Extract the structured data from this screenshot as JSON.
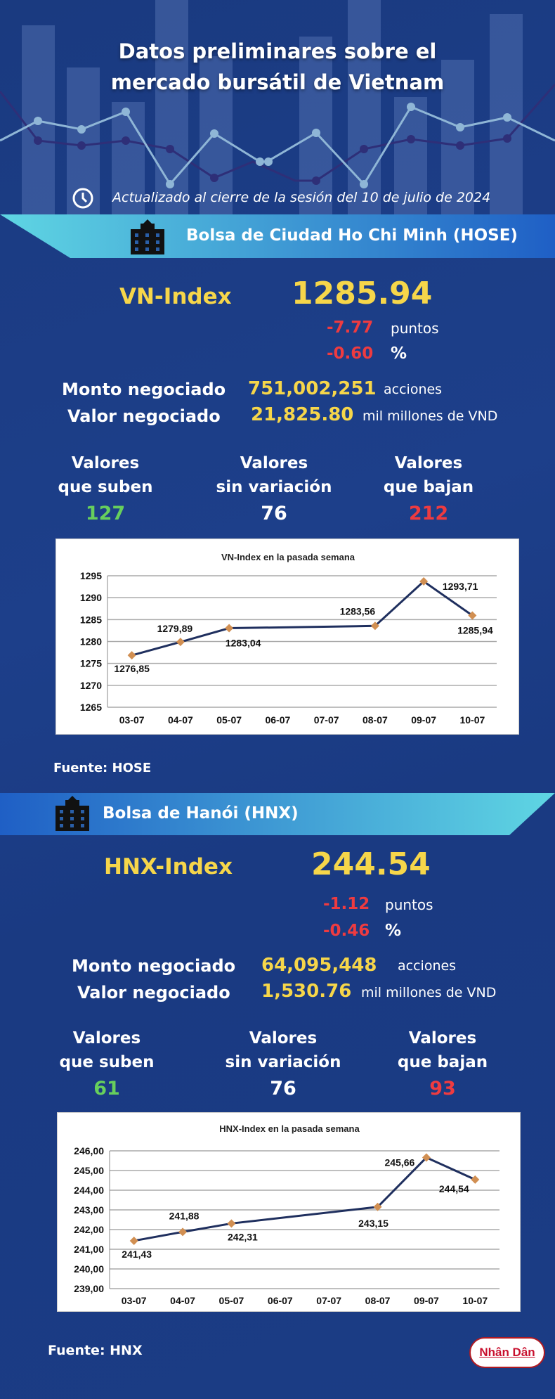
{
  "header": {
    "title_line1": "Datos preliminares sobre el",
    "title_line2": "mercado bursátil de Vietnam",
    "updated": "Actualizado al cierre de la sesión del 10 de julio de 2024",
    "icon": "clock-icon"
  },
  "colors": {
    "positive": "#67cf5c",
    "negative": "#ee3b40",
    "highlight": "#f6d64a",
    "background": "#1b3c85",
    "line": "#1f2f5e",
    "marker": "#d18f52"
  },
  "hose": {
    "banner": "Bolsa de Ciudad Ho Chi Minh (HOSE)",
    "index_label": "VN-Index",
    "index_value": "1285.94",
    "change_points": "-7.77",
    "points_unit": "puntos",
    "change_pct": "-0.60",
    "pct_unit": "%",
    "volume_label": "Monto negociado",
    "volume_value": "751,002,251",
    "volume_unit": "acciones",
    "value_label": "Valor negociado",
    "value_value": "21,825.80",
    "value_unit": "mil millones de VND",
    "up_label1": "Valores",
    "up_label2": "que suben",
    "up_count": "127",
    "flat_label1": "Valores",
    "flat_label2": "sin variación",
    "flat_count": "76",
    "down_label1": "Valores",
    "down_label2": "que bajan",
    "down_count": "212",
    "source": "Fuente: HOSE"
  },
  "hnx": {
    "banner": "Bolsa de Hanói (HNX)",
    "index_label": "HNX-Index",
    "index_value": "244.54",
    "change_points": "-1.12",
    "points_unit": "puntos",
    "change_pct": "-0.46",
    "pct_unit": "%",
    "volume_label": "Monto negociado",
    "volume_value": "64,095,448",
    "volume_unit": "acciones",
    "value_label": "Valor negociado",
    "value_value": "1,530.76",
    "value_unit": "mil millones de VND",
    "up_label1": "Valores",
    "up_label2": "que suben",
    "up_count": "61",
    "flat_label1": "Valores",
    "flat_label2": "sin variación",
    "flat_count": "76",
    "down_label1": "Valores",
    "down_label2": "que bajan",
    "down_count": "93",
    "source": "Fuente:  HNX"
  },
  "logo": "Nhân Dân",
  "chart_data": [
    {
      "type": "line",
      "title": "VN-Index en la pasada semana",
      "categories": [
        "03-07",
        "04-07",
        "05-07",
        "06-07",
        "07-07",
        "08-07",
        "09-07",
        "10-07"
      ],
      "x": [
        "03-07",
        "04-07",
        "05-07",
        "08-07",
        "09-07",
        "10-07"
      ],
      "values": [
        1276.85,
        1279.89,
        1283.04,
        1283.56,
        1293.71,
        1285.94
      ],
      "data_labels": [
        "1276,85",
        "1279,89",
        "1283,04",
        "1283,56",
        "1293,71",
        "1285,94"
      ],
      "yticks": [
        "1265",
        "1270",
        "1275",
        "1280",
        "1285",
        "1290",
        "1295"
      ],
      "ylim": [
        1265,
        1295
      ],
      "grid": true
    },
    {
      "type": "line",
      "title": "HNX-Index en la pasada semana",
      "categories": [
        "03-07",
        "04-07",
        "05-07",
        "06-07",
        "07-07",
        "08-07",
        "09-07",
        "10-07"
      ],
      "x": [
        "03-07",
        "04-07",
        "05-07",
        "08-07",
        "09-07",
        "10-07"
      ],
      "values": [
        241.43,
        241.88,
        242.31,
        243.15,
        245.66,
        244.54
      ],
      "data_labels": [
        "241,43",
        "241,88",
        "242,31",
        "243,15",
        "245,66",
        "244,54"
      ],
      "yticks": [
        "239,00",
        "240,00",
        "241,00",
        "242,00",
        "243,00",
        "244,00",
        "245,00",
        "246,00"
      ],
      "ylim": [
        239,
        246
      ],
      "grid": true
    }
  ]
}
